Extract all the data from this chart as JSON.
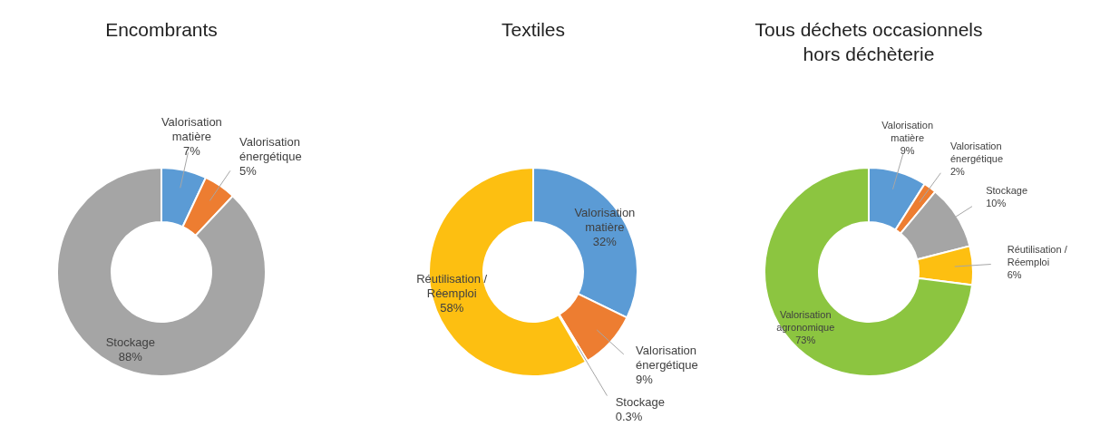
{
  "chart_data": [
    {
      "type": "donut",
      "title": "Encombrants",
      "categories": [
        "Valorisation matière",
        "Valorisation énergétique",
        "Stockage"
      ],
      "values": [
        7,
        5,
        88
      ],
      "value_labels": [
        "7%",
        "5%",
        "88%"
      ],
      "colors": [
        "#5b9bd5",
        "#ed7d31",
        "#a5a5a5"
      ]
    },
    {
      "type": "donut",
      "title": "Textiles",
      "categories": [
        "Valorisation matière",
        "Valorisation énergétique",
        "Stockage",
        "Réutilisation / Réemploi"
      ],
      "values": [
        32,
        9,
        0.3,
        58
      ],
      "value_labels": [
        "32%",
        "9%",
        "0.3%",
        "58%"
      ],
      "colors": [
        "#5b9bd5",
        "#ed7d31",
        "#a5a5a5",
        "#fdbf11"
      ]
    },
    {
      "type": "donut",
      "title": "Tous déchets occasionnels hors déchèterie",
      "categories": [
        "Valorisation matière",
        "Valorisation énergétique",
        "Stockage",
        "Réutilisation / Réemploi",
        "Valorisation agronomique"
      ],
      "values": [
        9,
        2,
        10,
        6,
        73
      ],
      "value_labels": [
        "9%",
        "2%",
        "10%",
        "6%",
        "73%"
      ],
      "colors": [
        "#5b9bd5",
        "#ed7d31",
        "#a5a5a5",
        "#fdbf11",
        "#8cc540"
      ]
    }
  ]
}
